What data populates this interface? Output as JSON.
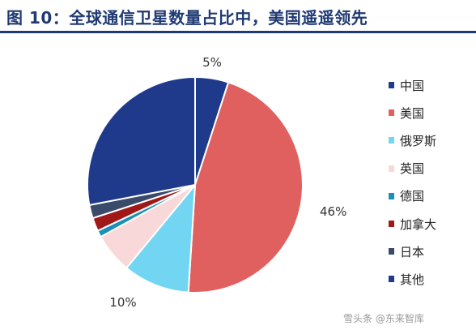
{
  "title": "图 10：全球通信卫星数量占比中，美国遥遥领先",
  "watermark": "雪头条 @东来智库",
  "chart_data": {
    "type": "pie",
    "labels": [
      "中国",
      "美国",
      "俄罗斯",
      "英国",
      "德国",
      "加拿大",
      "日本",
      "其他"
    ],
    "values": [
      5,
      46,
      10,
      6,
      1,
      2,
      2,
      28
    ],
    "colors": [
      "#1f3a8a",
      "#e06060",
      "#72d6f2",
      "#f8d8d8",
      "#1a8fb8",
      "#a01818",
      "#3a4a6a",
      "#1f3a8a"
    ],
    "data_labels": [
      "5%",
      "46%",
      "10%",
      "",
      "",
      "",
      "",
      ""
    ],
    "legend_position": "right"
  }
}
